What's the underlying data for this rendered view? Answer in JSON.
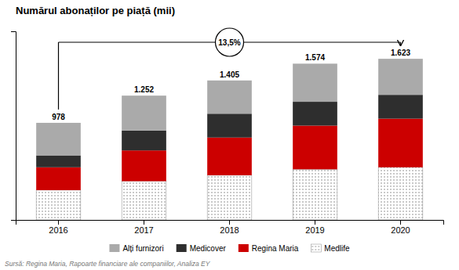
{
  "chart_data": {
    "type": "bar",
    "title": "Numărul abonaților pe piață (mii)",
    "categories": [
      "2016",
      "2017",
      "2018",
      "2019",
      "2020"
    ],
    "series": [
      {
        "name": "Medlife",
        "color": "#ffffff",
        "values": [
          300,
          390,
          450,
          510,
          530
        ]
      },
      {
        "name": "Regina Maria",
        "color": "#cc0000",
        "values": [
          230,
          310,
          380,
          440,
          490
        ]
      },
      {
        "name": "Medicover",
        "color": "#2e2e2e",
        "values": [
          120,
          200,
          240,
          240,
          240
        ]
      },
      {
        "name": "Alți furnizori",
        "color": "#aaaaaa",
        "values": [
          328,
          352,
          335,
          384,
          363
        ]
      }
    ],
    "stacked": true,
    "ylim": [
      0,
      1900
    ],
    "tick_labels": "x",
    "grid": false,
    "legend": "bottom",
    "totals": [
      978,
      1252,
      1405,
      1574,
      1623
    ],
    "total_labels": [
      "978",
      "1.252",
      "1.405",
      "1.574",
      "1.623"
    ],
    "annotation": "13,5%",
    "source": "Sursă: Regina Maria, Rapoarte financiare ale companiilor, Analiza EY"
  }
}
